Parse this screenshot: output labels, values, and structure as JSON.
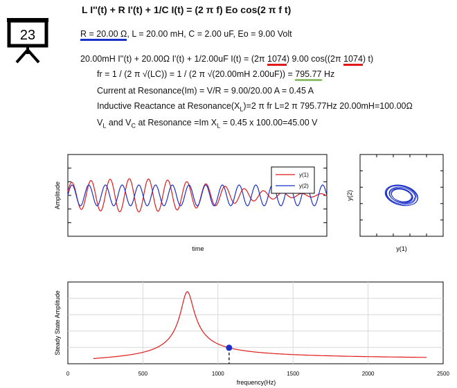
{
  "badge": {
    "number": "23"
  },
  "header": {
    "title": "L I''(t) + R I'(t) + 1/C I(t) = (2 π f) Eo cos(2 π f t)",
    "params_r": "R = 20.00 Ω",
    "params_rest": ", L = 20.00 mH, C = 2.00 uF, Eo = 9.00 Volt"
  },
  "equations": {
    "eq_prefix": "20.00mH I''(t) + 20.00Ω I'(t) + 1/2.00uF I(t) = (2π ",
    "eq_f1": "1074",
    "eq_mid": ") 9.00 cos((2π ",
    "eq_f2": "1074",
    "eq_end": ") t)",
    "fr_prefix": "fr = 1 / (2 π √(LC)) = 1 / (2 π √(20.00mH 2.00uF)) = ",
    "fr_value": "795.77",
    "fr_unit": " Hz",
    "im_line": "Current at Resonance(Im) = V/R = 9.00/20.00 A = 0.45 A",
    "xl_a": "Inductive Reactance at Resonance(X",
    "xl_sub": "L",
    "xl_b": ")=2 π fr L=2 π 795.77Hz 20.00mH=100.00Ω",
    "v_a": "V",
    "v_sub1": "L",
    "v_b": " and V",
    "v_sub2": "C",
    "v_c": " at Resonance =Im X",
    "v_sub3": "L",
    "v_d": " = 0.45 x 100.00=45.00 V"
  },
  "colors": {
    "blue": "#1a2fc8",
    "red": "#e01919",
    "green": "#8fbf6a"
  },
  "chart_data": [
    {
      "type": "line",
      "xlabel": "time",
      "ylabel": "Amplitude",
      "grid": false,
      "legend": "top-right",
      "series": [
        {
          "name": "y(1)",
          "color": "#e01919"
        },
        {
          "name": "y(2)",
          "color": "#1a2fc8"
        }
      ]
    },
    {
      "type": "line",
      "xlabel": "y(1)",
      "ylabel": "y(2)",
      "grid": false
    },
    {
      "type": "line",
      "xlabel": "frequency(Hz)",
      "ylabel": "Steady State Amplitude",
      "grid": true,
      "xlim": [
        0,
        2500
      ],
      "x_ticks": [
        "0",
        "500",
        "1000",
        "1500",
        "2000",
        "2500"
      ],
      "resonance_hz": 795.77,
      "marker_hz": 1074,
      "marker_fraction_of_peak": 0.31
    }
  ]
}
